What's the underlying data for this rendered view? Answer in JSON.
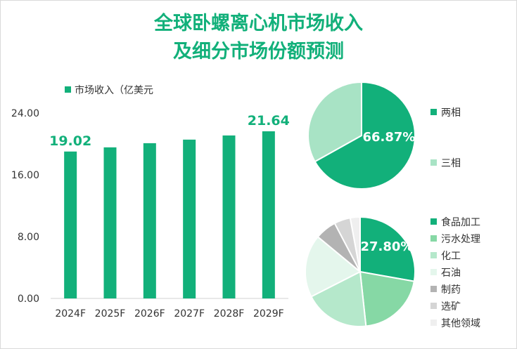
{
  "title_line1": "全球卧螺离心机市场收入",
  "title_line2": "及细分市场份额预测",
  "chart_data": [
    {
      "type": "bar",
      "series": [
        {
          "name": "市场收入（亿美元",
          "values": [
            19.02,
            19.56,
            20.1,
            20.56,
            21.1,
            21.64
          ]
        }
      ],
      "categories": [
        "2024F",
        "2025F",
        "2026F",
        "2027F",
        "2028F",
        "2029F"
      ],
      "value_labels": [
        "19.02",
        "",
        "",
        "",
        "",
        "21.64"
      ],
      "yticks": [
        "0.00",
        "8.00",
        "16.00",
        "24.00"
      ],
      "ylim": [
        0,
        24
      ],
      "color": "#12b07a",
      "legend": "top-left"
    },
    {
      "type": "pie",
      "labels": [
        "两相",
        "三相"
      ],
      "values": [
        66.87,
        33.13
      ],
      "colors": [
        "#12b07a",
        "#a8e3c5"
      ],
      "value_labels": [
        "66.87%",
        ""
      ],
      "legend": "right"
    },
    {
      "type": "pie",
      "labels": [
        "食品加工",
        "污水处理",
        "化工",
        "石油",
        "制药",
        "选矿",
        "其他领域"
      ],
      "values": [
        27.8,
        20.5,
        19.2,
        18.5,
        6.3,
        4.8,
        2.9
      ],
      "colors": [
        "#12b07a",
        "#86d8a5",
        "#b5e8cb",
        "#e4f6ec",
        "#b3b3b3",
        "#d5d5d5",
        "#efefef"
      ],
      "value_labels": [
        "27.80%",
        "",
        "",
        "",
        "",
        "",
        ""
      ],
      "legend": "right"
    }
  ]
}
